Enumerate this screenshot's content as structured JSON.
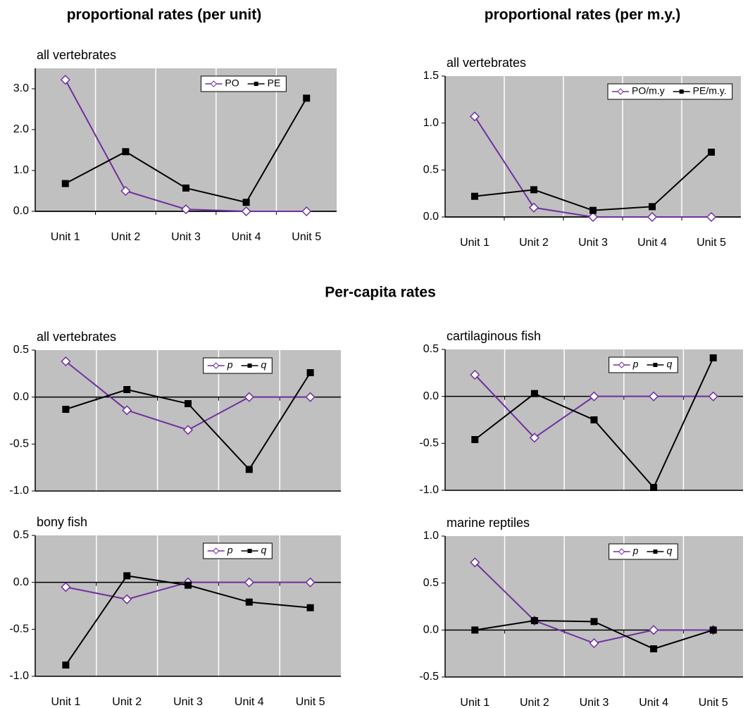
{
  "heading": "Per-capita rates",
  "chart_data": [
    {
      "type": "line",
      "title": "proportional rates (per unit)",
      "subtitle": "all vertebrates",
      "categories": [
        "Unit 1",
        "Unit 2",
        "Unit 3",
        "Unit 4",
        "Unit 5"
      ],
      "series": [
        {
          "name": "PO",
          "color": "#7030a0",
          "marker": "diamond",
          "values": [
            3.22,
            0.5,
            0.05,
            0.0,
            0.0
          ]
        },
        {
          "name": "PE",
          "color": "#000000",
          "marker": "square",
          "values": [
            0.68,
            1.46,
            0.57,
            0.22,
            2.77
          ]
        }
      ],
      "ylim": [
        0,
        3.5
      ],
      "yticks": [
        {
          "value": 0,
          "label": "0.0"
        },
        {
          "value": 1,
          "label": "1.0"
        },
        {
          "value": 2,
          "label": "2.0"
        },
        {
          "value": 3,
          "label": "3.0"
        }
      ],
      "grid": "vertical",
      "legend": "top-right"
    },
    {
      "type": "line",
      "title": "proportional rates (per m.y.)",
      "subtitle": "all vertebrates",
      "categories": [
        "Unit 1",
        "Unit 2",
        "Unit 3",
        "Unit 4",
        "Unit 5"
      ],
      "series": [
        {
          "name": "PO/m.y",
          "color": "#7030a0",
          "marker": "diamond",
          "values": [
            1.07,
            0.1,
            0.0,
            0.0,
            0.0
          ]
        },
        {
          "name": "PE/m.y.",
          "color": "#000000",
          "marker": "square",
          "values": [
            0.22,
            0.29,
            0.07,
            0.11,
            0.69
          ]
        }
      ],
      "ylim": [
        0,
        1.5
      ],
      "yticks": [
        {
          "value": 0,
          "label": "0.0"
        },
        0.5,
        {
          "value": 1,
          "label": "1.0"
        },
        1.5
      ],
      "grid": "vertical",
      "legend": "top-right"
    },
    {
      "type": "line",
      "subtitle": "all vertebrates",
      "categories": [
        null,
        null,
        null,
        null,
        null
      ],
      "series": [
        {
          "name": "p",
          "color": "#7030a0",
          "marker": "diamond",
          "values": [
            0.38,
            -0.14,
            -0.35,
            0.0,
            0.0
          ]
        },
        {
          "name": "q",
          "color": "#000000",
          "marker": "square",
          "values": [
            -0.13,
            0.08,
            -0.07,
            -0.77,
            0.26
          ]
        }
      ],
      "ylim": [
        -1,
        0.5
      ],
      "yticks": [
        {
          "value": -1,
          "label": "-1.0"
        },
        -0.5,
        {
          "value": 0,
          "label": "0.0"
        },
        0.5
      ],
      "grid": "vertical",
      "legend": "top-right",
      "legend_font_style": "italic"
    },
    {
      "type": "line",
      "subtitle": "cartilaginous fish",
      "categories": [
        null,
        null,
        null,
        null,
        null
      ],
      "series": [
        {
          "name": "p",
          "color": "#7030a0",
          "marker": "diamond",
          "values": [
            0.23,
            -0.44,
            0.0,
            0.0,
            0.0
          ]
        },
        {
          "name": "q",
          "color": "#000000",
          "marker": "square",
          "values": [
            -0.46,
            0.03,
            -0.25,
            -0.97,
            0.41
          ]
        }
      ],
      "ylim": [
        -1,
        0.5
      ],
      "yticks": [
        {
          "value": -1,
          "label": "-1.0"
        },
        -0.5,
        {
          "value": 0,
          "label": "0.0"
        },
        0.5
      ],
      "grid": "vertical",
      "legend": "top-right",
      "legend_font_style": "italic"
    },
    {
      "type": "line",
      "subtitle": "bony fish",
      "categories": [
        "Unit 1",
        "Unit 2",
        "Unit 3",
        "Unit 4",
        "Unit 5"
      ],
      "series": [
        {
          "name": "p",
          "color": "#7030a0",
          "marker": "diamond",
          "values": [
            -0.05,
            -0.18,
            0.0,
            0.0,
            0.0
          ]
        },
        {
          "name": "q",
          "color": "#000000",
          "marker": "square",
          "values": [
            -0.88,
            0.07,
            -0.03,
            -0.21,
            -0.27
          ]
        }
      ],
      "ylim": [
        -1,
        0.5
      ],
      "yticks": [
        {
          "value": -1,
          "label": "-1.0"
        },
        -0.5,
        {
          "value": 0,
          "label": "0.0"
        },
        0.5
      ],
      "grid": "vertical",
      "legend": "top-right",
      "legend_font_style": "italic"
    },
    {
      "type": "line",
      "subtitle": "marine  reptiles",
      "categories": [
        "Unit 1",
        "Unit 2",
        "Unit 3",
        "Unit 4",
        "Unit 5"
      ],
      "series": [
        {
          "name": "p",
          "color": "#7030a0",
          "marker": "diamond",
          "values": [
            0.72,
            0.1,
            -0.14,
            0.0,
            0.0
          ]
        },
        {
          "name": "q",
          "color": "#000000",
          "marker": "square",
          "values": [
            0.0,
            0.1,
            0.09,
            -0.2,
            0.0
          ]
        }
      ],
      "ylim": [
        -0.5,
        1
      ],
      "yticks": [
        -0.5,
        {
          "value": 0,
          "label": "0.0"
        },
        0.5,
        {
          "value": 1,
          "label": "1.0"
        }
      ],
      "grid": "vertical",
      "legend": "top-right",
      "legend_font_style": "italic"
    }
  ]
}
